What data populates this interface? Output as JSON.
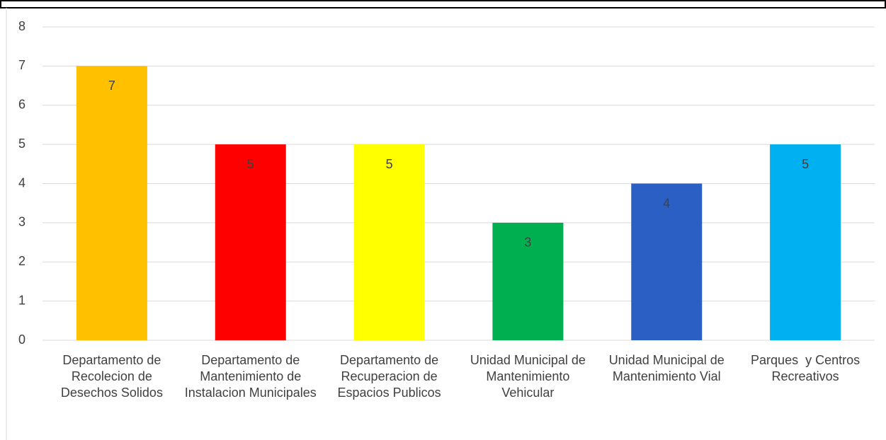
{
  "chart_data": {
    "type": "bar",
    "categories": [
      "Departamento de Recolecion de Desechos Solidos",
      "Departamento de Mantenimiento de Instalacion Municipales",
      "Departamento de Recuperacion de Espacios Publicos",
      "Unidad Municipal de Mantenimiento Vehicular",
      "Unidad Municipal de Mantenimiento Vial",
      "Parques  y Centros Recreativos"
    ],
    "values": [
      7,
      5,
      5,
      3,
      4,
      5
    ],
    "colors": [
      "#FFC000",
      "#FF0000",
      "#FFFF00",
      "#00B050",
      "#2C5FC4",
      "#00B0F0"
    ],
    "ylim": [
      0,
      8
    ],
    "yticks": [
      0,
      1,
      2,
      3,
      4,
      5,
      6,
      7,
      8
    ],
    "grid": true
  }
}
